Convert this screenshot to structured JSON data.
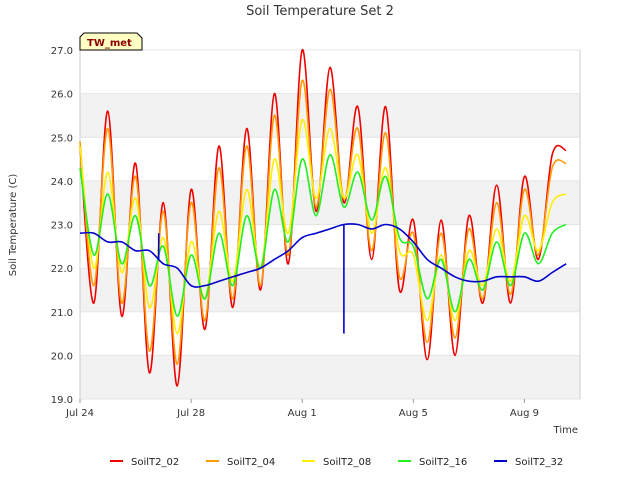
{
  "chart_data": {
    "type": "line",
    "title": "Soil Temperature Set 2",
    "xlabel": "Time",
    "ylabel": "Soil Temperature (C)",
    "badge": "TW_met",
    "ylim": [
      19.0,
      27.0
    ],
    "yticks": [
      "19.0",
      "20.0",
      "21.0",
      "22.0",
      "23.0",
      "24.0",
      "25.0",
      "26.0",
      "27.0"
    ],
    "xlim": [
      "2023-07-24",
      "2023-08-11"
    ],
    "xticks": [
      {
        "label": "Jul 24",
        "date": "2023-07-24"
      },
      {
        "label": "Jul 28",
        "date": "2023-07-28"
      },
      {
        "label": "Aug 1",
        "date": "2023-08-01"
      },
      {
        "label": "Aug 5",
        "date": "2023-08-05"
      },
      {
        "label": "Aug 9",
        "date": "2023-08-09"
      }
    ],
    "x": [
      "2023-07-24 00:00",
      "2023-07-24 12:00",
      "2023-07-25 00:00",
      "2023-07-25 12:00",
      "2023-07-26 00:00",
      "2023-07-26 12:00",
      "2023-07-27 00:00",
      "2023-07-27 12:00",
      "2023-07-28 00:00",
      "2023-07-28 12:00",
      "2023-07-29 00:00",
      "2023-07-29 12:00",
      "2023-07-30 00:00",
      "2023-07-30 12:00",
      "2023-07-31 00:00",
      "2023-07-31 12:00",
      "2023-08-01 00:00",
      "2023-08-01 12:00",
      "2023-08-02 00:00",
      "2023-08-02 12:00",
      "2023-08-03 00:00",
      "2023-08-03 12:00",
      "2023-08-04 00:00",
      "2023-08-04 12:00",
      "2023-08-05 00:00",
      "2023-08-05 12:00",
      "2023-08-06 00:00",
      "2023-08-06 12:00",
      "2023-08-07 00:00",
      "2023-08-07 12:00",
      "2023-08-08 00:00",
      "2023-08-08 12:00",
      "2023-08-09 00:00",
      "2023-08-09 12:00",
      "2023-08-10 00:00",
      "2023-08-10 12:00"
    ],
    "series": [
      {
        "name": "SoilT2_02",
        "color": "#ee0000",
        "values": [
          24.8,
          21.2,
          25.6,
          20.9,
          24.4,
          19.6,
          23.5,
          19.3,
          23.8,
          20.6,
          24.8,
          21.1,
          25.2,
          21.5,
          26.0,
          22.1,
          27.0,
          23.3,
          26.6,
          23.5,
          25.7,
          22.2,
          25.7,
          21.5,
          23.1,
          19.9,
          23.1,
          20.0,
          23.2,
          21.2,
          23.9,
          21.2,
          24.1,
          22.2,
          24.6,
          24.7
        ]
      },
      {
        "name": "SoilT2_04",
        "color": "#ff9900",
        "values": [
          24.9,
          21.6,
          25.2,
          21.2,
          24.1,
          20.1,
          23.3,
          19.8,
          23.5,
          20.8,
          24.3,
          21.3,
          24.8,
          21.6,
          25.5,
          22.3,
          26.3,
          23.4,
          26.1,
          23.6,
          25.2,
          22.4,
          25.1,
          21.8,
          22.8,
          20.3,
          22.8,
          20.4,
          22.9,
          21.3,
          23.5,
          21.4,
          23.8,
          22.3,
          24.3,
          24.4
        ]
      },
      {
        "name": "SoilT2_08",
        "color": "#ffee00",
        "values": [
          24.8,
          22.0,
          24.2,
          21.9,
          23.6,
          21.1,
          22.7,
          20.5,
          22.6,
          21.3,
          23.3,
          21.7,
          23.8,
          22.0,
          24.5,
          22.8,
          25.4,
          23.6,
          25.2,
          23.6,
          24.6,
          22.8,
          24.3,
          22.4,
          22.3,
          20.8,
          22.3,
          20.8,
          22.4,
          21.6,
          22.9,
          21.7,
          23.2,
          22.4,
          23.5,
          23.7
        ]
      },
      {
        "name": "SoilT2_16",
        "color": "#22ee22",
        "values": [
          24.3,
          22.3,
          23.7,
          22.1,
          23.2,
          21.6,
          22.5,
          20.9,
          22.3,
          21.3,
          22.8,
          21.6,
          23.2,
          22.0,
          23.8,
          22.6,
          24.5,
          23.2,
          24.6,
          23.4,
          24.2,
          23.1,
          24.1,
          22.7,
          22.5,
          21.3,
          22.2,
          21.0,
          22.2,
          21.5,
          22.6,
          21.6,
          22.8,
          22.1,
          22.8,
          23.0
        ]
      },
      {
        "name": "SoilT2_32",
        "color": "#0000cc",
        "values": [
          22.8,
          22.8,
          22.6,
          22.6,
          22.4,
          22.4,
          22.1,
          22.0,
          21.6,
          21.6,
          21.7,
          21.8,
          21.9,
          22.0,
          22.2,
          22.4,
          22.7,
          22.8,
          22.9,
          23.0,
          23.0,
          22.9,
          23.0,
          22.9,
          22.6,
          22.2,
          22.0,
          21.8,
          21.7,
          21.7,
          21.8,
          21.8,
          21.8,
          21.7,
          21.9,
          22.1
        ]
      }
    ],
    "spikes": [
      {
        "series": "SoilT2_32",
        "x": "2023-07-26 20:00",
        "value": 22.8
      },
      {
        "series": "SoilT2_32",
        "x": "2023-08-02 12:00",
        "value": 20.5
      }
    ],
    "legend_position": "bottom"
  }
}
